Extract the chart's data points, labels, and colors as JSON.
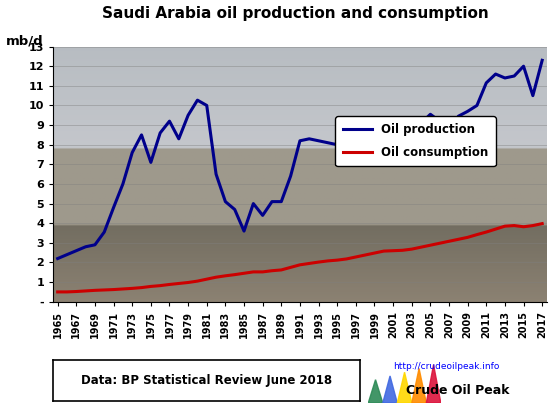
{
  "title": "Saudi Arabia oil production and consumption",
  "ylabel": "mb/d",
  "years": [
    1965,
    1966,
    1967,
    1968,
    1969,
    1970,
    1971,
    1972,
    1973,
    1974,
    1975,
    1976,
    1977,
    1978,
    1979,
    1980,
    1981,
    1982,
    1983,
    1984,
    1985,
    1986,
    1987,
    1988,
    1989,
    1990,
    1991,
    1992,
    1993,
    1994,
    1995,
    1996,
    1997,
    1998,
    1999,
    2000,
    2001,
    2002,
    2003,
    2004,
    2005,
    2006,
    2007,
    2008,
    2009,
    2010,
    2011,
    2012,
    2013,
    2014,
    2015,
    2016,
    2017
  ],
  "production": [
    2.2,
    2.4,
    2.6,
    2.8,
    2.9,
    3.55,
    4.8,
    6.0,
    7.6,
    8.5,
    7.1,
    8.6,
    9.2,
    8.3,
    9.5,
    10.27,
    10.0,
    6.5,
    5.1,
    4.7,
    3.6,
    5.0,
    4.4,
    5.1,
    5.1,
    6.4,
    8.2,
    8.3,
    8.2,
    8.1,
    8.0,
    8.2,
    8.4,
    8.4,
    7.8,
    9.1,
    8.8,
    7.6,
    8.8,
    9.1,
    9.55,
    9.2,
    8.7,
    9.45,
    9.7,
    10.0,
    11.15,
    11.6,
    11.4,
    11.5,
    12.0,
    10.5,
    12.3
  ],
  "consumption": [
    0.5,
    0.5,
    0.52,
    0.55,
    0.58,
    0.6,
    0.62,
    0.65,
    0.68,
    0.72,
    0.78,
    0.82,
    0.88,
    0.93,
    0.98,
    1.05,
    1.15,
    1.25,
    1.32,
    1.38,
    1.45,
    1.52,
    1.52,
    1.58,
    1.62,
    1.75,
    1.88,
    1.95,
    2.02,
    2.08,
    2.12,
    2.18,
    2.28,
    2.38,
    2.48,
    2.58,
    2.6,
    2.62,
    2.68,
    2.78,
    2.88,
    2.98,
    3.08,
    3.18,
    3.28,
    3.42,
    3.55,
    3.7,
    3.85,
    3.88,
    3.82,
    3.88,
    3.98
  ],
  "production_color": "#00008B",
  "consumption_color": "#CC0000",
  "ylim": [
    0,
    13
  ],
  "ytick_vals": [
    0,
    1,
    2,
    3,
    4,
    5,
    6,
    7,
    8,
    9,
    10,
    11,
    12,
    13
  ],
  "ytick_labels": [
    "-",
    "1",
    "2",
    "3",
    "4",
    "5",
    "6",
    "7",
    "8",
    "9",
    "10",
    "11",
    "12",
    "13"
  ],
  "background_color": "#FFFFFF",
  "legend_labels": [
    "Oil production",
    "Oil consumption"
  ],
  "footnote": "Data: BP Statistical Review June 2018",
  "url_text": "http://crudeoilpeak.info",
  "brand_text": "Crude Oil Peak",
  "line_width": 2.2
}
